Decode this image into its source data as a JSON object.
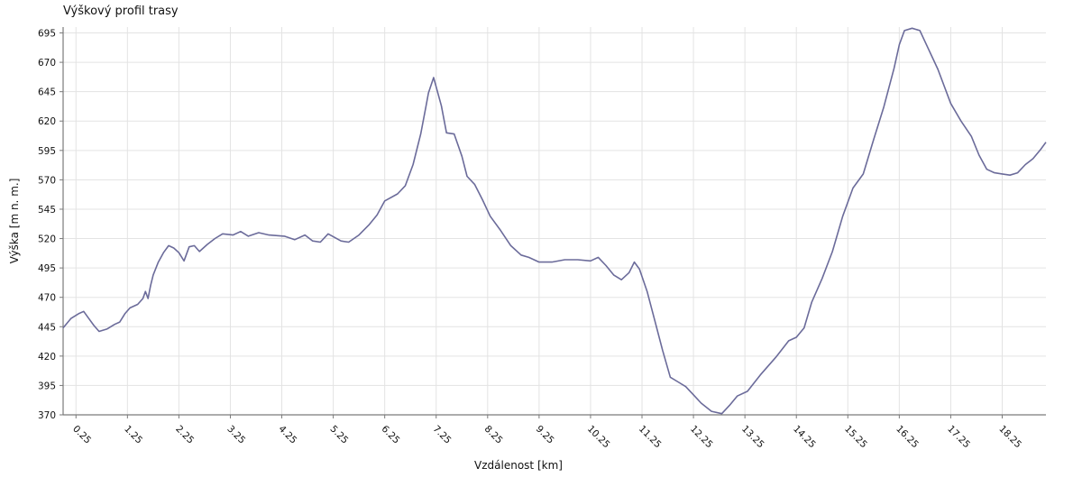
{
  "chart_data": {
    "type": "line",
    "title": "Výškový profil trasy",
    "xlabel": "Vzdálenost [km]",
    "ylabel": "Výška [m n. m.]",
    "xlim": [
      0.0,
      19.1
    ],
    "ylim": [
      370,
      700
    ],
    "x_ticks": [
      0.25,
      1.25,
      2.25,
      3.25,
      4.25,
      5.25,
      6.25,
      7.25,
      8.25,
      9.25,
      10.25,
      11.25,
      12.25,
      13.25,
      14.25,
      15.25,
      16.25,
      17.25,
      18.25
    ],
    "x_tick_labels": [
      "0.25",
      "1.25",
      "2.25",
      "3.25",
      "4.25",
      "5.25",
      "6.25",
      "7.25",
      "8.25",
      "9.25",
      "10.25",
      "11.25",
      "12.25",
      "13.25",
      "14.25",
      "15.25",
      "16.25",
      "17.25",
      "18.25"
    ],
    "y_ticks": [
      370,
      395,
      420,
      445,
      470,
      495,
      520,
      545,
      570,
      595,
      620,
      645,
      670,
      695
    ],
    "y_tick_labels": [
      "370",
      "395",
      "420",
      "445",
      "470",
      "495",
      "520",
      "545",
      "570",
      "595",
      "620",
      "645",
      "670",
      "695"
    ],
    "grid": true,
    "line_color": "#6b6b9a",
    "series": [
      {
        "x": [
          0.0,
          0.15,
          0.3,
          0.4,
          0.5,
          0.6,
          0.7,
          0.85,
          1.0,
          1.1,
          1.2,
          1.3,
          1.45,
          1.55,
          1.6,
          1.65,
          1.7,
          1.75,
          1.85,
          1.95,
          2.05,
          2.15,
          2.25,
          2.35,
          2.45,
          2.55,
          2.65,
          2.8,
          2.95,
          3.1,
          3.3,
          3.45,
          3.6,
          3.8,
          4.0,
          4.3,
          4.5,
          4.7,
          4.85,
          5.0,
          5.15,
          5.4,
          5.55,
          5.75,
          5.95,
          6.1,
          6.25,
          6.5,
          6.65,
          6.8,
          6.95,
          7.05,
          7.1,
          7.2,
          7.35,
          7.45,
          7.6,
          7.75,
          7.85,
          8.0,
          8.15,
          8.3,
          8.5,
          8.7,
          8.9,
          9.05,
          9.25,
          9.5,
          9.75,
          10.0,
          10.25,
          10.4,
          10.55,
          10.7,
          10.85,
          11.0,
          11.1,
          11.2,
          11.35,
          11.5,
          11.65,
          11.8,
          11.95,
          12.1,
          12.25,
          12.4,
          12.6,
          12.8,
          12.95,
          13.1,
          13.3,
          13.55,
          13.85,
          14.1,
          14.25,
          14.4,
          14.55,
          14.75,
          14.95,
          15.15,
          15.35,
          15.55,
          15.75,
          15.95,
          16.15,
          16.25,
          16.35,
          16.5,
          16.65,
          16.8,
          17.0,
          17.25,
          17.45,
          17.65,
          17.8,
          17.95,
          18.1,
          18.25,
          18.4,
          18.55,
          18.7,
          18.85,
          19.0,
          19.1
        ],
        "values": [
          444,
          452,
          456,
          458,
          452,
          446,
          441,
          443,
          447,
          449,
          456,
          461,
          464,
          469,
          475,
          469,
          480,
          489,
          500,
          508,
          514,
          512,
          508,
          501,
          513,
          514,
          509,
          515,
          520,
          524,
          523,
          526,
          522,
          525,
          523,
          522,
          519,
          523,
          518,
          517,
          524,
          518,
          517,
          523,
          532,
          540,
          552,
          558,
          565,
          583,
          609,
          632,
          644,
          657,
          633,
          610,
          609,
          590,
          573,
          566,
          553,
          539,
          527,
          514,
          506,
          504,
          500,
          500,
          502,
          502,
          501,
          504,
          497,
          489,
          485,
          491,
          500,
          494,
          475,
          450,
          425,
          402,
          398,
          394,
          387,
          380,
          373,
          371,
          378,
          386,
          390,
          404,
          419,
          433,
          436,
          444,
          466,
          486,
          509,
          539,
          563,
          575,
          604,
          632,
          665,
          685,
          697,
          699,
          697,
          683,
          664,
          635,
          620,
          607,
          591,
          579,
          576,
          575,
          574,
          576,
          583,
          588,
          596,
          602
        ]
      }
    ]
  }
}
